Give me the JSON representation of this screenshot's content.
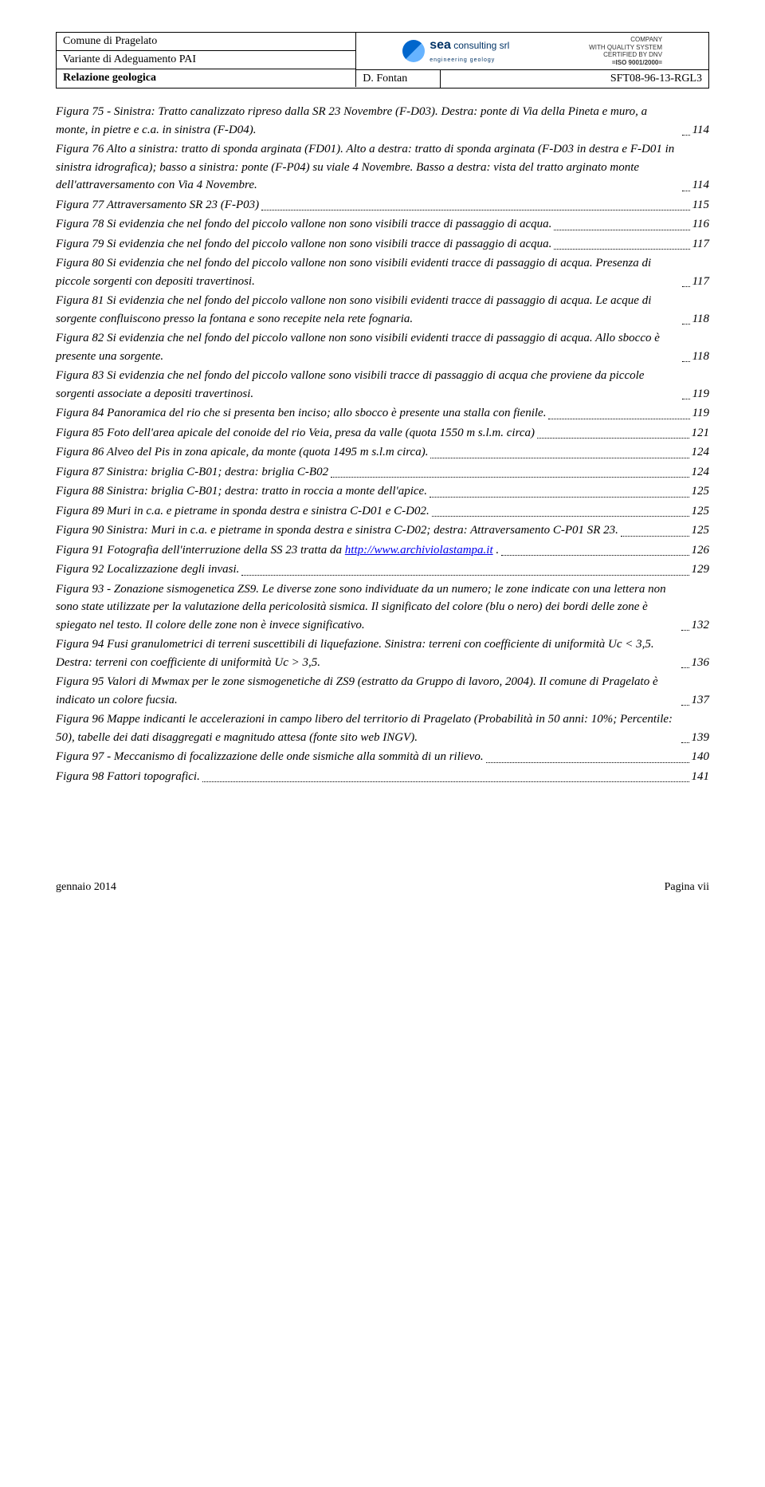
{
  "header": {
    "comune": "Comune di Pragelato",
    "variante": "Variante di Adeguamento PAI",
    "relazione": "Relazione geologica",
    "author": "D. Fontan",
    "code": "SFT08-96-13-RGL3",
    "logo_company": "consulting srl",
    "logo_brand": "sea",
    "logo_tagline": "engineering geology",
    "iso_line1": "COMPANY",
    "iso_line2": "WITH QUALITY SYSTEM",
    "iso_line3": "CERTIFIED BY DNV",
    "iso_line4": "=ISO 9001/2000="
  },
  "toc": [
    {
      "text": "Figura 75 - Sinistra: Tratto canalizzato ripreso dalla SR 23 Novembre (F-D03). Destra: ponte di Via della Pineta e muro, a monte, in pietre e c.a. in sinistra (F-D04).",
      "page": "114"
    },
    {
      "text": "Figura 76 Alto a sinistra: tratto di sponda arginata (FD01). Alto a destra: tratto di sponda arginata (F-D03 in destra e F-D01 in sinistra idrografica); basso a sinistra: ponte (F-P04) su viale 4 Novembre. Basso a destra:  vista del tratto arginato monte dell'attraversamento con Via 4 Novembre.",
      "page": "114"
    },
    {
      "text": "Figura 77 Attraversamento SR 23 (F-P03)",
      "page": "115"
    },
    {
      "text": "Figura 78 Si evidenzia che nel fondo del piccolo vallone non sono visibili tracce di passaggio di acqua.",
      "page": "116"
    },
    {
      "text": "Figura 79 Si evidenzia che nel fondo del piccolo vallone non sono visibili tracce di passaggio di acqua.",
      "page": "117"
    },
    {
      "text": "Figura 80 Si evidenzia che nel fondo del piccolo vallone non sono visibili evidenti tracce di passaggio di acqua. Presenza di piccole sorgenti con depositi travertinosi.",
      "page": "117"
    },
    {
      "text": "Figura 81 Si evidenzia che nel fondo del piccolo vallone non sono visibili evidenti tracce di passaggio di acqua. Le acque di sorgente confluiscono presso la fontana e sono recepite nela rete fognaria.",
      "page": "118"
    },
    {
      "text": "Figura 82 Si evidenzia che nel fondo del piccolo vallone non sono visibili evidenti tracce di passaggio di acqua. Allo sbocco è presente una sorgente.",
      "page": "118"
    },
    {
      "text": "Figura 83 Si evidenzia che nel fondo del piccolo vallone sono visibili tracce di passaggio di acqua che proviene da  piccole sorgenti associate a depositi travertinosi.",
      "page": "119"
    },
    {
      "text": "Figura 84 Panoramica del rio che si presenta ben inciso; allo sbocco è presente una stalla con fienile.",
      "page": "119"
    },
    {
      "text": "Figura 85 Foto dell'area apicale del conoide del rio Veia, presa da valle (quota 1550 m s.l.m. circa)",
      "page": "121"
    },
    {
      "text": "Figura 86 Alveo del Pis in zona apicale, da monte (quota 1495 m s.l.m circa).",
      "page": "124"
    },
    {
      "text": "Figura 87 Sinistra: briglia  C-B01; destra: briglia C-B02",
      "page": "124"
    },
    {
      "text": "Figura 88 Sinistra: briglia  C-B01; destra: tratto in roccia a monte dell'apice.",
      "page": "125"
    },
    {
      "text": "Figura 89 Muri in c.a. e pietrame in sponda destra e sinistra  C-D01 e C-D02.",
      "page": "125"
    },
    {
      "text": "Figura 90 Sinistra: Muri in c.a. e pietrame in sponda destra e sinistra C-D02; destra: Attraversamento C-P01 SR 23.",
      "page": "125"
    },
    {
      "text": "Figura 91 Fotografia dell'interruzione della SS 23 tratta da ",
      "link": "http://www.archiviolastampa.it",
      "after": " .",
      "page": "126"
    },
    {
      "text": "Figura 92 Localizzazione degli invasi.",
      "page": "129"
    },
    {
      "text": "Figura 93 - Zonazione sismogenetica ZS9. Le diverse zone sono individuate da un numero; le zone indicate con una lettera non sono state utilizzate per la valutazione della pericolosità sismica. Il significato del colore (blu o nero) dei bordi delle zone è spiegato nel testo. Il colore delle zone non è invece significativo.",
      "page": "132"
    },
    {
      "text": "Figura 94 Fusi granulometrici di terreni suscettibili di liquefazione. Sinistra: terreni con coefficiente di uniformità Uc < 3,5. Destra: terreni con coefficiente di uniformità Uc > 3,5.",
      "page": "136"
    },
    {
      "text": "Figura 95 Valori di Mwmax per le zone sismogenetiche di ZS9 (estratto da Gruppo di lavoro, 2004). Il comune di Pragelato è indicato un colore fucsia.",
      "page": "137"
    },
    {
      "text": "Figura 96 Mappe indicanti le accelerazioni in campo libero del territorio di Pragelato (Probabilità in 50 anni: 10%; Percentile: 50), tabelle dei dati disaggregati e magnitudo attesa (fonte sito web INGV).",
      "page": "139"
    },
    {
      "text": "Figura 97 - Meccanismo di focalizzazione delle onde sismiche alla sommità di un rilievo.",
      "page": "140"
    },
    {
      "text": "Figura 98 Fattori topografici.",
      "page": "141"
    }
  ],
  "footer": {
    "left": "gennaio 2014",
    "right": "Pagina vii"
  }
}
